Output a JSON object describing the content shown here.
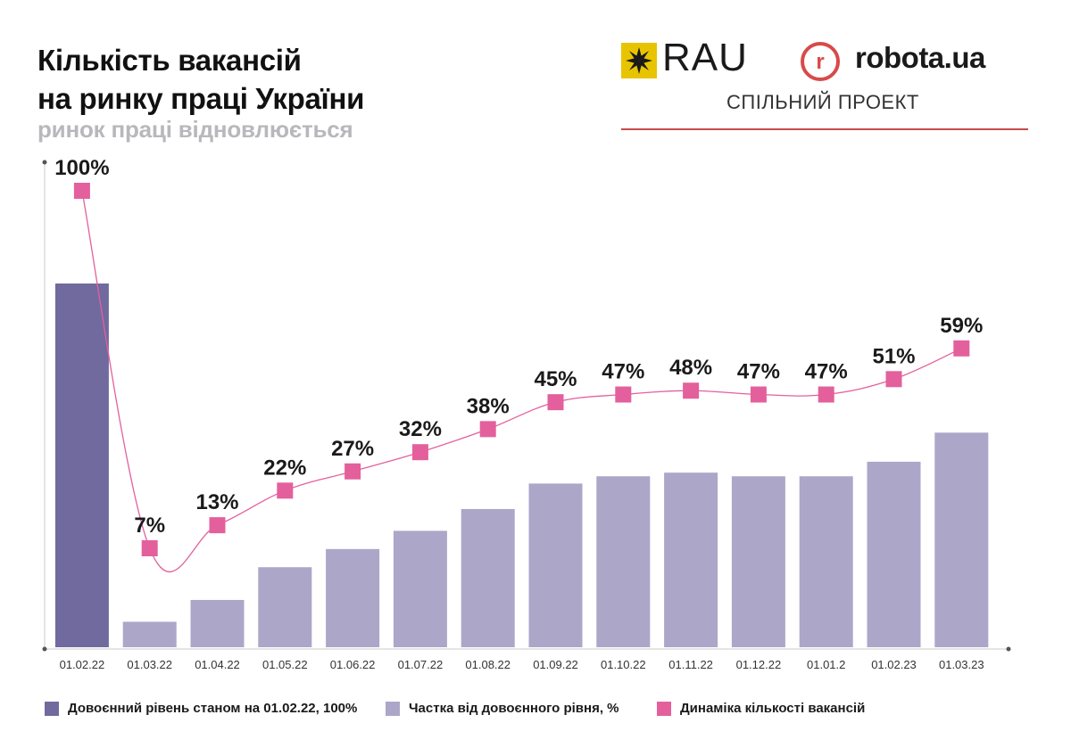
{
  "header": {
    "title_line1": "Кількість вакансій",
    "title_line2": "на ринку праці України",
    "subtitle": "ринок праці відновлюється"
  },
  "logos": {
    "rau": "RAU",
    "robota": "robota.ua",
    "robota_icon_letter": "r",
    "joint_project": "СПІЛЬНИЙ ПРОЕКТ",
    "rau_icon": "star-ornament-icon",
    "robota_icon": "robota-r-circle-icon"
  },
  "colors": {
    "prewar_bar": "#706a9e",
    "share_bar": "#aca6c8",
    "dynamics": "#e3609c",
    "accent_line": "#c94a4a"
  },
  "legend": {
    "prewar": "Довоєнний рівень станом на 01.02.22, 100%",
    "share": "Частка від довоєнного рівня, %",
    "dynamics": "Динаміка кількості вакансій"
  },
  "chart_data": {
    "type": "bar",
    "categories": [
      "01.02.22",
      "01.03.22",
      "01.04.22",
      "01.05.22",
      "01.06.22",
      "01.07.22",
      "01.08.22",
      "01.09.22",
      "01.10.22",
      "01.11.22",
      "01.12.22",
      "01.01.2",
      "01.02.23",
      "01.03.23"
    ],
    "series": [
      {
        "name": "Довоєнний рівень станом на 01.02.22, 100%",
        "kind": "bar",
        "values": [
          100,
          null,
          null,
          null,
          null,
          null,
          null,
          null,
          null,
          null,
          null,
          null,
          null,
          null
        ]
      },
      {
        "name": "Частка від довоєнного рівня, %",
        "kind": "bar",
        "values": [
          null,
          7,
          13,
          22,
          27,
          32,
          38,
          45,
          47,
          48,
          47,
          47,
          51,
          59
        ]
      },
      {
        "name": "Динаміка кількості вакансій",
        "kind": "line",
        "values": [
          100,
          7,
          13,
          22,
          27,
          32,
          38,
          45,
          47,
          48,
          47,
          47,
          51,
          59
        ]
      }
    ],
    "data_labels": [
      "100%",
      "7%",
      "13%",
      "22%",
      "27%",
      "32%",
      "38%",
      "45%",
      "47%",
      "48%",
      "47%",
      "47%",
      "51%",
      "59%"
    ],
    "ylim": [
      0,
      100
    ],
    "grid": false,
    "legend_position": "bottom"
  }
}
